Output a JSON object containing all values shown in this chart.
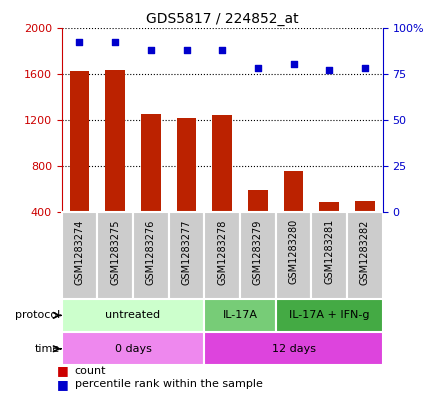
{
  "title": "GDS5817 / 224852_at",
  "samples": [
    "GSM1283274",
    "GSM1283275",
    "GSM1283276",
    "GSM1283277",
    "GSM1283278",
    "GSM1283279",
    "GSM1283280",
    "GSM1283281",
    "GSM1283282"
  ],
  "counts": [
    1620,
    1635,
    1250,
    1220,
    1245,
    590,
    755,
    490,
    500
  ],
  "percentile_ranks": [
    92,
    92,
    88,
    88,
    88,
    78,
    80,
    77,
    78
  ],
  "ylim_left": [
    400,
    2000
  ],
  "ylim_right": [
    0,
    100
  ],
  "yticks_left": [
    400,
    800,
    1200,
    1600,
    2000
  ],
  "ytick_labels_left": [
    "400",
    "800",
    "1200",
    "1600",
    "2000"
  ],
  "yticks_right": [
    0,
    25,
    50,
    75,
    100
  ],
  "ytick_labels_right": [
    "0",
    "25",
    "50",
    "75",
    "100%"
  ],
  "bar_color": "#bb2200",
  "dot_color": "#0000cc",
  "grid_color": "#000000",
  "protocol_groups": [
    {
      "label": "untreated",
      "start": 0,
      "end": 4,
      "color": "#ccffcc"
    },
    {
      "label": "IL-17A",
      "start": 4,
      "end": 6,
      "color": "#77cc77"
    },
    {
      "label": "IL-17A + IFN-g",
      "start": 6,
      "end": 9,
      "color": "#44aa44"
    }
  ],
  "time_groups": [
    {
      "label": "0 days",
      "start": 0,
      "end": 4,
      "color": "#ee88ee"
    },
    {
      "label": "12 days",
      "start": 4,
      "end": 9,
      "color": "#dd44dd"
    }
  ],
  "protocol_label": "protocol",
  "time_label": "time",
  "legend_count_label": "count",
  "legend_pct_label": "percentile rank within the sample",
  "bar_color_label": "#cc0000",
  "dot_color_label": "#0000cc",
  "bar_width": 0.55,
  "sample_box_color": "#cccccc",
  "sample_box_edge": "#ffffff",
  "left_axis_color": "#cc0000",
  "right_axis_color": "#0000cc",
  "figsize": [
    4.4,
    3.93
  ],
  "dpi": 100
}
